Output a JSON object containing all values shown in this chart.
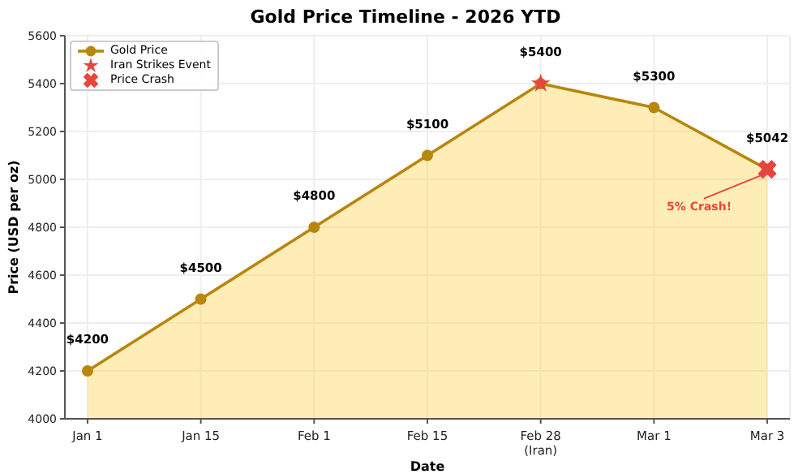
{
  "chart_data": {
    "type": "area",
    "title": "Gold Price Timeline - 2026 YTD",
    "xlabel": "Date",
    "ylabel": "Price (USD per oz)",
    "categories": [
      "Jan 1",
      "Jan 15",
      "Feb 1",
      "Feb 15",
      "Feb 28\n(Iran)",
      "Mar 1",
      "Mar 3"
    ],
    "series": [
      {
        "name": "Gold Price",
        "color": "#b8860b",
        "marker": "circle",
        "values": [
          4200,
          4500,
          4800,
          5100,
          5400,
          5300,
          5042
        ],
        "value_labels": [
          "$4200",
          "$4500",
          "$4800",
          "$5100",
          "$5400",
          "$5300",
          "$5042"
        ]
      },
      {
        "name": "Iran Strikes Event",
        "type": "scatter",
        "color": "#e8453c",
        "marker": "star",
        "values": [
          null,
          null,
          null,
          null,
          5400,
          null,
          null
        ]
      },
      {
        "name": "Price Crash",
        "type": "scatter",
        "color": "#e8453c",
        "marker": "cross",
        "values": [
          null,
          null,
          null,
          null,
          null,
          null,
          5042
        ]
      }
    ],
    "ylim": [
      4000,
      5600
    ],
    "yticks": [
      4000,
      4200,
      4400,
      4600,
      4800,
      5000,
      5200,
      5400,
      5600
    ],
    "grid": true,
    "legend": "top left",
    "annotations": [
      {
        "text": "5% Crash!",
        "x": "Mar 3",
        "y": 5042
      }
    ]
  }
}
